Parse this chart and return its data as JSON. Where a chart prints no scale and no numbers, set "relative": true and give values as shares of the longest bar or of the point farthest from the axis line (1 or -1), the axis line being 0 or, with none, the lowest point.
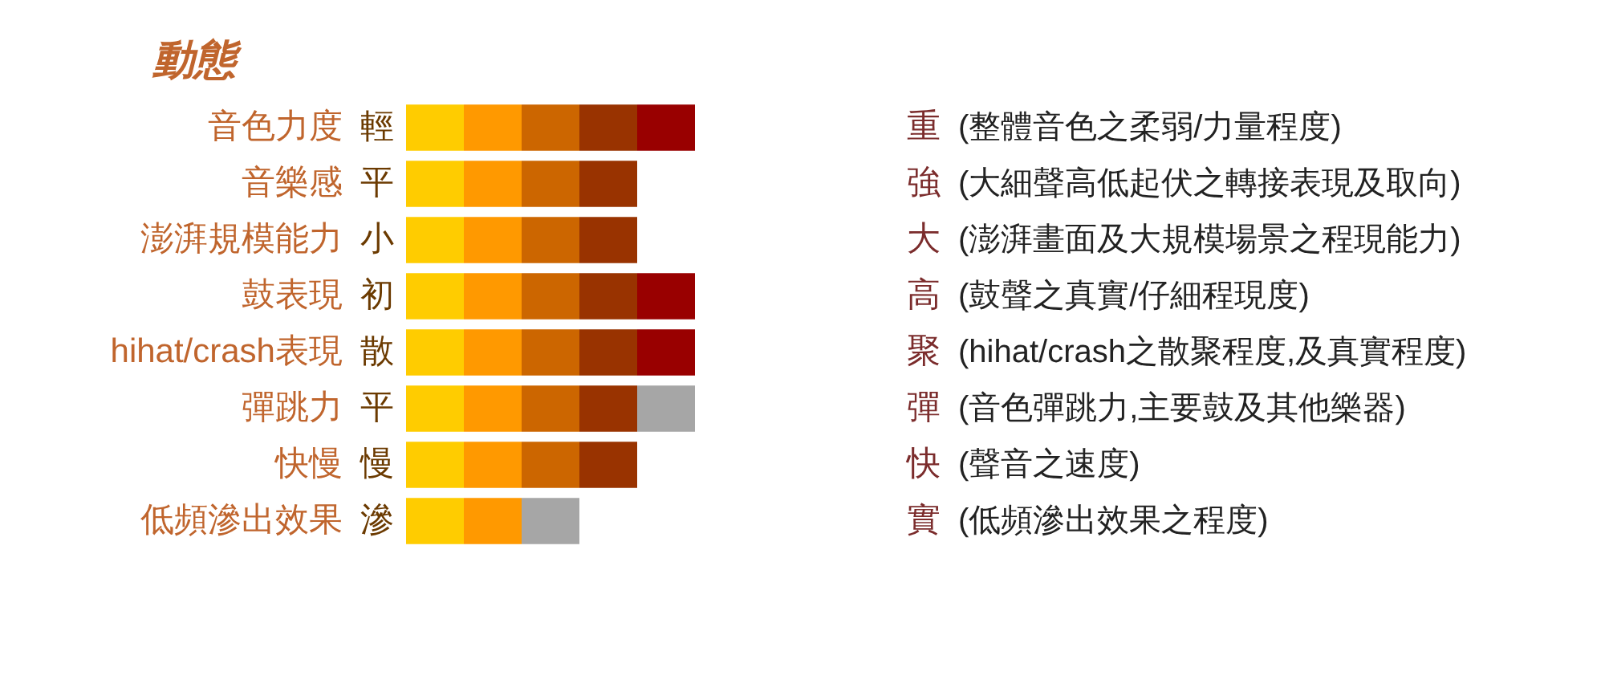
{
  "chart_data": {
    "type": "bar",
    "orientation": "horizontal",
    "stacked": true,
    "relative": true,
    "title": "動態",
    "categories": [
      "音色力度",
      "音樂感",
      "澎湃規模能力",
      "鼓表現",
      "hihat/crash表現",
      "彈跳力",
      "快慢",
      "低頻滲出效果"
    ],
    "series": [
      {
        "color": "#ffcc00",
        "values": [
          0.2,
          0.2,
          0.2,
          0.2,
          0.2,
          0.2,
          0.2,
          0.2
        ]
      },
      {
        "color": "#ff9900",
        "values": [
          0.2,
          0.2,
          0.2,
          0.2,
          0.2,
          0.2,
          0.2,
          0.2
        ]
      },
      {
        "colors": [
          "#cc6600",
          "#cc6600",
          "#cc6600",
          "#cc6600",
          "#cc6600",
          "#cc6600",
          "#cc6600",
          "#a6a6a6"
        ],
        "values": [
          0.2,
          0.2,
          0.2,
          0.2,
          0.2,
          0.2,
          0.2,
          0.2
        ]
      },
      {
        "color": "#993300",
        "values": [
          0.2,
          0.2,
          0.2,
          0.2,
          0.2,
          0.2,
          0.2,
          null
        ]
      },
      {
        "colors": [
          "#990000",
          null,
          null,
          "#990000",
          "#990000",
          "#a6a6a6",
          null,
          null
        ],
        "values": [
          0.2,
          null,
          null,
          0.2,
          0.2,
          0.2,
          null,
          null
        ]
      }
    ],
    "annotations": [
      "輕",
      "平",
      "小",
      "初",
      "散",
      "平",
      "慢",
      "滲",
      "重",
      "強",
      "大",
      "高",
      "聚",
      "彈",
      "快",
      "實",
      "(整體音色之柔弱/力量程度)",
      "(大細聲高低起伏之轉接表現及取向)",
      "(澎湃畫面及大規模場景之程現能力)",
      "(鼓聲之真實/仔細程現度)",
      "(hihat/crash之散聚程度,及真實程度)",
      "(音色彈跳力,主要鼓及其他樂器)",
      "(聲音之速度)",
      "(低頻滲出效果之程度)"
    ]
  }
}
